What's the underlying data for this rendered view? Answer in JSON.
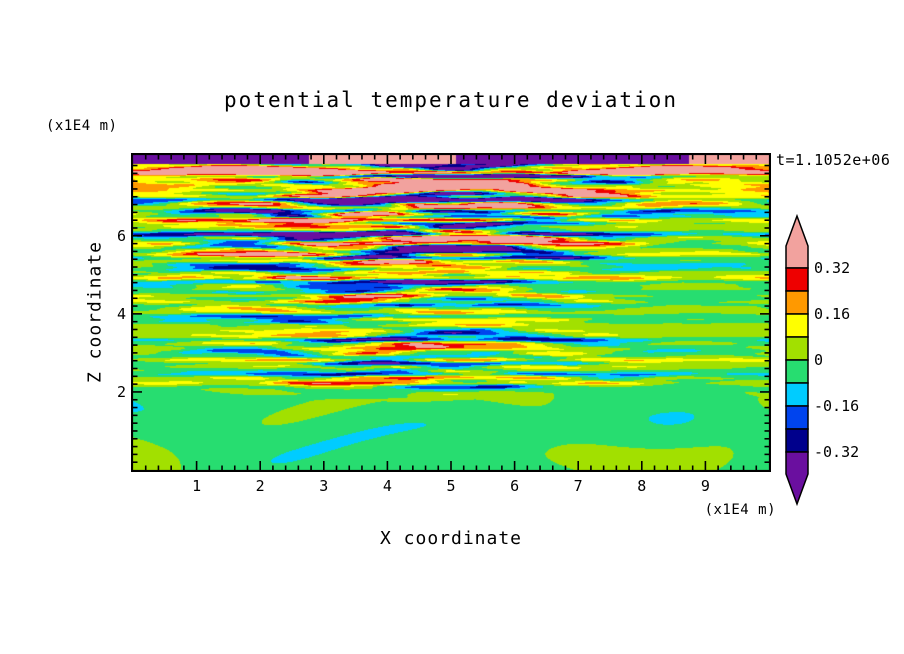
{
  "figure": {
    "background": "#ffffff"
  },
  "chart_data": {
    "type": "heatmap",
    "title": "potential temperature deviation",
    "xlabel": "X coordinate",
    "ylabel": "Z coordinate",
    "x_unit_label": "(x1E4 m)",
    "z_unit_label": "(x1E4 m)",
    "time_label": "t=1.1052e+06",
    "x_range": [
      0,
      10
    ],
    "z_range": [
      0,
      8.07
    ],
    "x_major_ticks": [
      1,
      2,
      3,
      4,
      5,
      6,
      7,
      8,
      9
    ],
    "x_tick_labels": [
      "1",
      "2",
      "3",
      "4",
      "5",
      "6",
      "7",
      "8",
      "9"
    ],
    "z_major_ticks": [
      2,
      4,
      6
    ],
    "z_tick_labels": [
      "2",
      "4",
      "6"
    ],
    "minor_tick_step": 0.2,
    "grid": false,
    "legend_position": "right-colorbar",
    "levels": [
      -0.32,
      -0.24,
      -0.16,
      -0.08,
      0,
      0.08,
      0.16,
      0.24,
      0.32
    ],
    "palette_low_to_high": [
      "#6a0f9f",
      "#00008c",
      "#0044ee",
      "#00ccff",
      "#27dd70",
      "#a2e000",
      "#ffff00",
      "#ff9900",
      "#ee0000",
      "#f2a29e"
    ],
    "colorbar": {
      "labels": [
        "0.32",
        "0.16",
        "0",
        "-0.16",
        "-0.32"
      ],
      "tick_values": [
        0.32,
        0.16,
        0,
        -0.16,
        -0.32
      ],
      "band_colors_top_to_bottom": [
        "#ee0000",
        "#ff9900",
        "#ffff00",
        "#a2e000",
        "#27dd70",
        "#00ccff",
        "#0044ee",
        "#00008c"
      ],
      "over_color": "#f2a29e",
      "under_color": "#6a0f9f"
    },
    "field_description": "Horizontally layered turbulent temperature-deviation streaks (strongest aloft, pink/purple extremes at the top boundary) above a smooth green region with light-green vortical swirls below z=2.",
    "generator": {
      "interface": {
        "z": 1.95,
        "a1": 0.12,
        "k1": 0.8,
        "p1": 1.7,
        "a2": 0.06,
        "k2": 2.3,
        "p2": 0.0,
        "blend": 0.1
      },
      "top_band": {
        "z0": 7.84,
        "kx": 1.05,
        "p": 0.6,
        "cut": -0.35,
        "neg": -0.5,
        "pos": 0.5
      },
      "lower": {
        "base": -0.025,
        "amp": 0.06,
        "k1": 1.15,
        "w1": 1.9,
        "k2": 0.55,
        "k3": 0.35,
        "p1": 1.0,
        "k4": 2.6,
        "w2": 1.3,
        "k5": 0.9,
        "p2": 0.4
      },
      "modes": [
        {
          "a": 1.0,
          "kz": 9.0,
          "p": 0.0,
          "wx": 1.8,
          "kx": 0.9,
          "q": 0.0
        },
        {
          "a": 0.8,
          "kz": 14.0,
          "p": 1.3,
          "wx": 1.2,
          "kx": 1.7,
          "q": 2.1
        },
        {
          "a": 0.6,
          "kz": 21.0,
          "p": 4.0,
          "wx": 0.9,
          "kx": 2.6,
          "q": 0.7
        },
        {
          "a": 0.5,
          "kz": 6.0,
          "p": 2.2,
          "wx": 2.2,
          "kx": 0.5,
          "q": 3.9
        },
        {
          "a": 0.4,
          "kz": 30.0,
          "p": 5.1,
          "wx": 0.6,
          "kx": 3.8,
          "q": 1.6
        },
        {
          "a": 0.35,
          "kz": 42.0,
          "p": 2.7,
          "wx": 0.5,
          "kx": 5.2,
          "q": 4.4
        }
      ],
      "patch": {
        "base": 0.7,
        "amp": 0.45,
        "kx": 0.62,
        "wz": 1.4,
        "kz": 0.33,
        "pz": 0.0,
        "p": 4.0
      },
      "envelope": [
        [
          0,
          0.02
        ],
        [
          1.95,
          0.03
        ],
        [
          2.1,
          0.08
        ],
        [
          2.4,
          0.16
        ],
        [
          3.0,
          0.14
        ],
        [
          3.7,
          0.1
        ],
        [
          4.3,
          0.12
        ],
        [
          5.0,
          0.17
        ],
        [
          5.6,
          0.23
        ],
        [
          6.2,
          0.26
        ],
        [
          6.8,
          0.31
        ],
        [
          7.15,
          0.3
        ],
        [
          7.45,
          0.34
        ],
        [
          7.8,
          0.42
        ],
        [
          8.07,
          0.5
        ]
      ],
      "offset": [
        [
          0,
          0.0
        ],
        [
          7.0,
          0.0
        ],
        [
          7.3,
          0.18
        ],
        [
          7.6,
          0.26
        ],
        [
          7.85,
          0.1
        ],
        [
          8.07,
          0.0
        ]
      ]
    }
  }
}
